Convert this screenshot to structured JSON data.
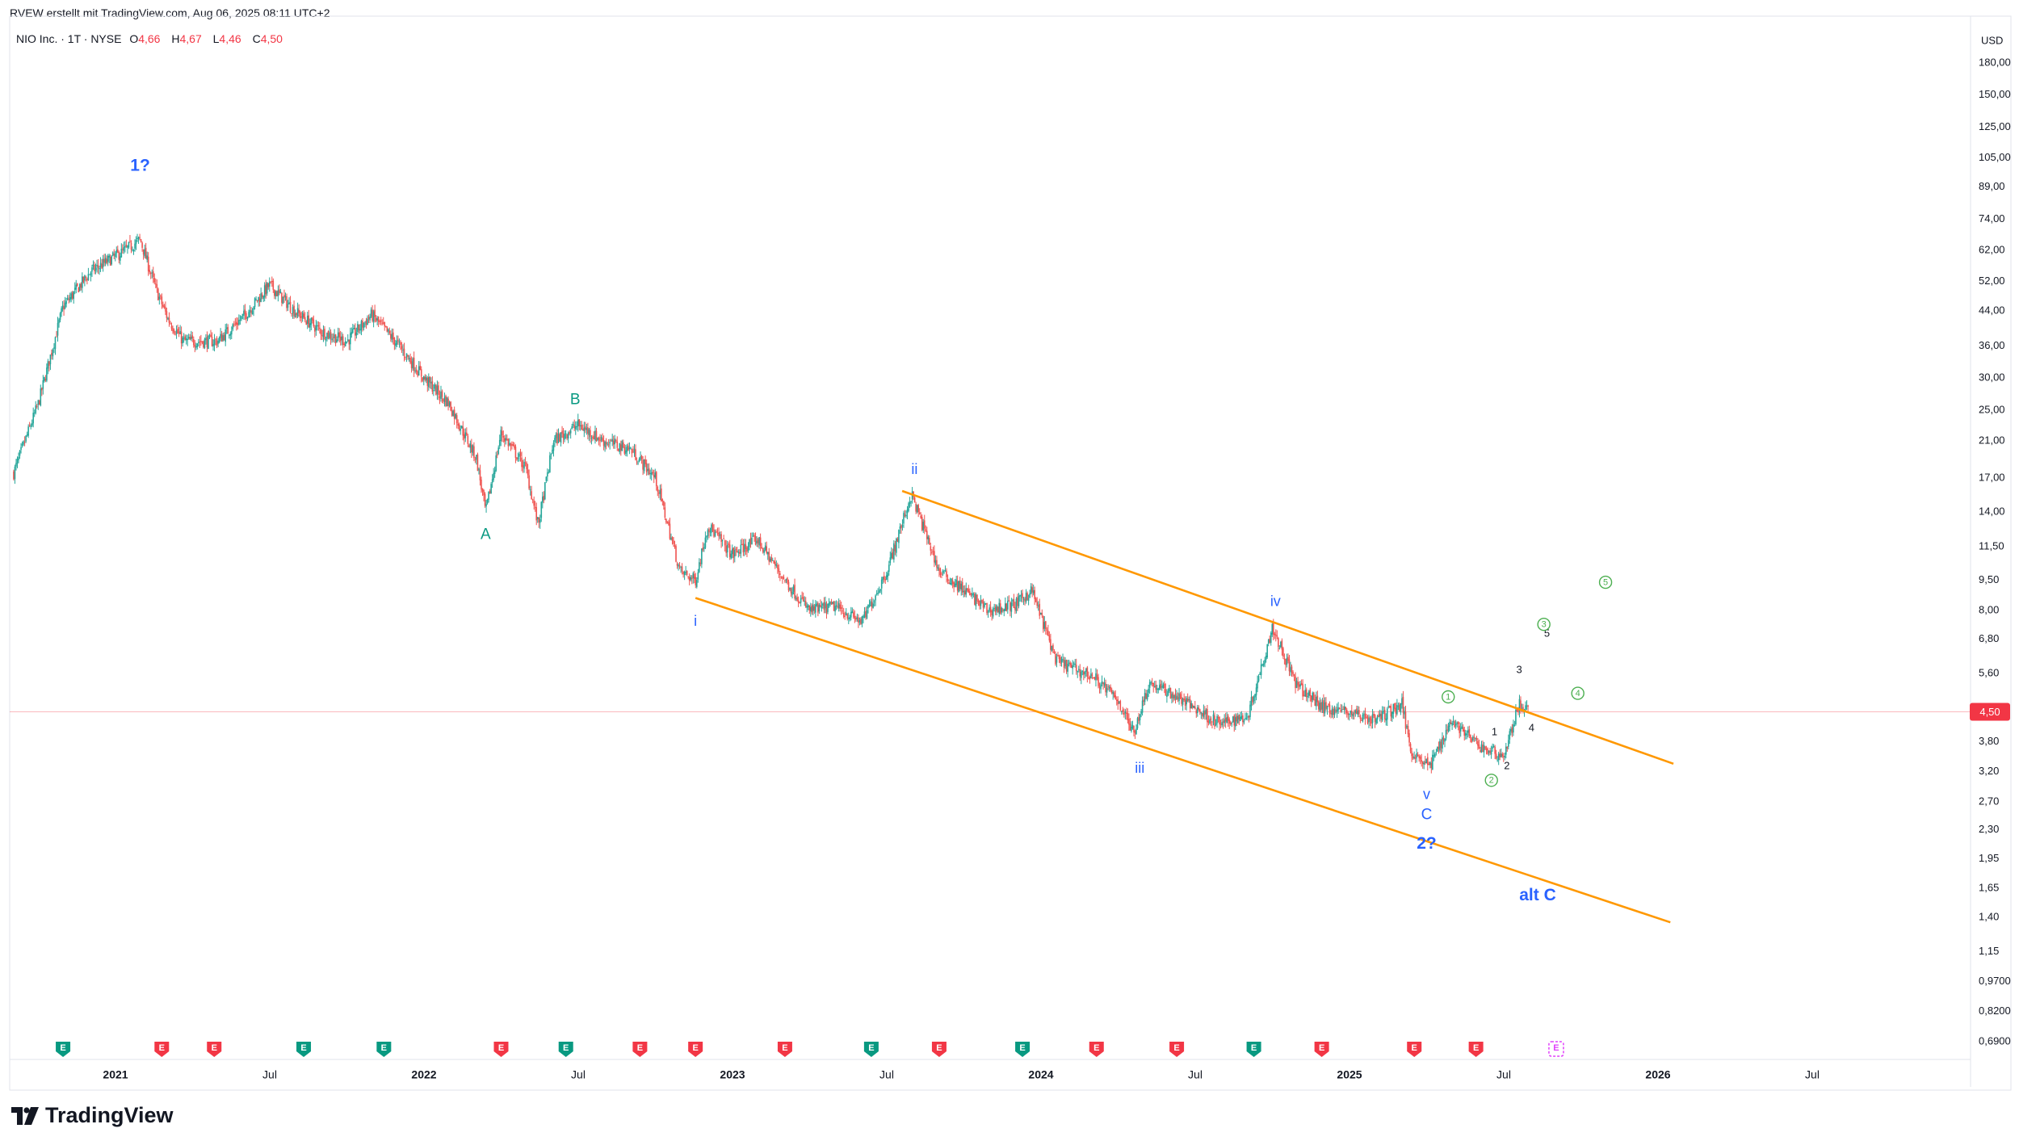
{
  "header": {
    "attribution": "RVEW erstellt mit TradingView.com, Aug 06, 2025 08:11 UTC+2"
  },
  "legend": {
    "symbol": "NIO Inc. · 1T · NYSE",
    "open_label": "O",
    "open": "4,66",
    "high_label": "H",
    "high": "4,67",
    "low_label": "L",
    "low": "4,46",
    "close_label": "C",
    "close": "4,50"
  },
  "brand": {
    "name": "TradingView"
  },
  "chart_data": {
    "type": "candlestick",
    "currency": "USD",
    "log_scale": true,
    "grid": false,
    "last_price": 4.5,
    "last_price_label": "4,50",
    "y_ticks": [
      {
        "v": 180,
        "label": "180,00"
      },
      {
        "v": 150,
        "label": "150,00"
      },
      {
        "v": 125,
        "label": "125,00"
      },
      {
        "v": 105,
        "label": "105,00"
      },
      {
        "v": 89,
        "label": "89,00"
      },
      {
        "v": 74,
        "label": "74,00"
      },
      {
        "v": 62,
        "label": "62,00"
      },
      {
        "v": 52,
        "label": "52,00"
      },
      {
        "v": 44,
        "label": "44,00"
      },
      {
        "v": 36,
        "label": "36,00"
      },
      {
        "v": 30,
        "label": "30,00"
      },
      {
        "v": 25,
        "label": "25,00"
      },
      {
        "v": 21,
        "label": "21,00"
      },
      {
        "v": 17,
        "label": "17,00"
      },
      {
        "v": 14,
        "label": "14,00"
      },
      {
        "v": 11.5,
        "label": "11,50"
      },
      {
        "v": 9.5,
        "label": "9,50"
      },
      {
        "v": 8,
        "label": "8,00"
      },
      {
        "v": 6.8,
        "label": "6,80"
      },
      {
        "v": 5.6,
        "label": "5,60"
      },
      {
        "v": 3.8,
        "label": "3,80"
      },
      {
        "v": 3.2,
        "label": "3,20"
      },
      {
        "v": 2.7,
        "label": "2,70"
      },
      {
        "v": 2.3,
        "label": "2,30"
      },
      {
        "v": 1.95,
        "label": "1,95"
      },
      {
        "v": 1.65,
        "label": "1,65"
      },
      {
        "v": 1.4,
        "label": "1,40"
      },
      {
        "v": 1.15,
        "label": "1,15"
      },
      {
        "v": 0.97,
        "label": "0,9700"
      },
      {
        "v": 0.82,
        "label": "0,8200"
      },
      {
        "v": 0.69,
        "label": "0,6900"
      }
    ],
    "x_ticks": [
      {
        "t": 2021.0,
        "label": "2021",
        "bold": true
      },
      {
        "t": 2021.5,
        "label": "Jul",
        "bold": false
      },
      {
        "t": 2022.0,
        "label": "2022",
        "bold": true
      },
      {
        "t": 2022.5,
        "label": "Jul",
        "bold": false
      },
      {
        "t": 2023.0,
        "label": "2023",
        "bold": true
      },
      {
        "t": 2023.5,
        "label": "Jul",
        "bold": false
      },
      {
        "t": 2024.0,
        "label": "2024",
        "bold": true
      },
      {
        "t": 2024.5,
        "label": "Jul",
        "bold": false
      },
      {
        "t": 2025.0,
        "label": "2025",
        "bold": true
      },
      {
        "t": 2025.5,
        "label": "Jul",
        "bold": false
      },
      {
        "t": 2026.0,
        "label": "2026",
        "bold": true
      },
      {
        "t": 2026.5,
        "label": "Jul",
        "bold": false
      }
    ],
    "price_path": [
      [
        2020.67,
        17.5
      ],
      [
        2020.75,
        26
      ],
      [
        2020.83,
        45
      ],
      [
        2020.92,
        55
      ],
      [
        2021.03,
        62
      ],
      [
        2021.08,
        66
      ],
      [
        2021.13,
        50
      ],
      [
        2021.17,
        42
      ],
      [
        2021.22,
        37
      ],
      [
        2021.33,
        37
      ],
      [
        2021.42,
        43
      ],
      [
        2021.5,
        51
      ],
      [
        2021.58,
        44
      ],
      [
        2021.67,
        39
      ],
      [
        2021.75,
        37
      ],
      [
        2021.83,
        43
      ],
      [
        2021.92,
        36
      ],
      [
        2022.0,
        30
      ],
      [
        2022.08,
        26
      ],
      [
        2022.17,
        19
      ],
      [
        2022.2,
        14
      ],
      [
        2022.25,
        22
      ],
      [
        2022.33,
        18
      ],
      [
        2022.37,
        13
      ],
      [
        2022.42,
        21
      ],
      [
        2022.5,
        23
      ],
      [
        2022.58,
        21
      ],
      [
        2022.67,
        20
      ],
      [
        2022.75,
        17
      ],
      [
        2022.83,
        10
      ],
      [
        2022.88,
        9.5
      ],
      [
        2022.92,
        13
      ],
      [
        2023.0,
        11
      ],
      [
        2023.08,
        12
      ],
      [
        2023.17,
        9.5
      ],
      [
        2023.25,
        8
      ],
      [
        2023.33,
        8.2
      ],
      [
        2023.42,
        7.5
      ],
      [
        2023.5,
        10
      ],
      [
        2023.58,
        15.5
      ],
      [
        2023.67,
        10
      ],
      [
        2023.75,
        9
      ],
      [
        2023.83,
        8
      ],
      [
        2023.92,
        8.3
      ],
      [
        2023.97,
        9
      ],
      [
        2024.05,
        6
      ],
      [
        2024.17,
        5.5
      ],
      [
        2024.25,
        4.8
      ],
      [
        2024.3,
        4.0
      ],
      [
        2024.35,
        5.3
      ],
      [
        2024.42,
        5.0
      ],
      [
        2024.5,
        4.6
      ],
      [
        2024.58,
        4.2
      ],
      [
        2024.67,
        4.4
      ],
      [
        2024.75,
        7.3
      ],
      [
        2024.83,
        5.2
      ],
      [
        2024.92,
        4.6
      ],
      [
        2025.0,
        4.5
      ],
      [
        2025.08,
        4.3
      ],
      [
        2025.17,
        4.7
      ],
      [
        2025.2,
        3.6
      ],
      [
        2025.26,
        3.3
      ],
      [
        2025.33,
        4.3
      ],
      [
        2025.42,
        3.7
      ],
      [
        2025.5,
        3.5
      ],
      [
        2025.55,
        4.7
      ],
      [
        2025.58,
        4.5
      ]
    ],
    "channel": {
      "upper": {
        "t1": 2023.55,
        "p1": 15.8,
        "t2": 2026.05,
        "p2": 3.35
      },
      "lower": {
        "t1": 2022.88,
        "p1": 8.6,
        "t2": 2026.04,
        "p2": 1.36
      }
    },
    "wave_labels": [
      {
        "text": "1?",
        "t": 2021.08,
        "p": 100,
        "color": "#2962ff",
        "size": 21
      },
      {
        "text": "A",
        "t": 2022.2,
        "p": 12.3,
        "color": "#089981",
        "size": 19
      },
      {
        "text": "B",
        "t": 2022.49,
        "p": 26.5,
        "color": "#089981",
        "size": 19
      },
      {
        "text": "i",
        "t": 2022.88,
        "p": 7.5,
        "color": "#2962ff",
        "size": 18
      },
      {
        "text": "ii",
        "t": 2023.59,
        "p": 17.8,
        "color": "#2962ff",
        "size": 18
      },
      {
        "text": "iii",
        "t": 2024.32,
        "p": 3.25,
        "color": "#2962ff",
        "size": 18
      },
      {
        "text": "iv",
        "t": 2024.76,
        "p": 8.4,
        "color": "#2962ff",
        "size": 18
      },
      {
        "text": "v",
        "t": 2025.25,
        "p": 2.8,
        "color": "#2962ff",
        "size": 18
      },
      {
        "text": "C",
        "t": 2025.25,
        "p": 2.5,
        "color": "#2962ff",
        "size": 19
      },
      {
        "text": "2?",
        "t": 2025.25,
        "p": 2.12,
        "color": "#2962ff",
        "size": 21
      },
      {
        "text": "alt C",
        "t": 2025.61,
        "p": 1.58,
        "color": "#2962ff",
        "size": 21
      },
      {
        "text": "1",
        "t": 2025.47,
        "p": 4.0,
        "color": "#131722",
        "size": 13
      },
      {
        "text": "2",
        "t": 2025.51,
        "p": 3.3,
        "color": "#131722",
        "size": 13
      },
      {
        "text": "3",
        "t": 2025.55,
        "p": 5.7,
        "color": "#131722",
        "size": 13
      },
      {
        "text": "4",
        "t": 2025.59,
        "p": 4.1,
        "color": "#131722",
        "size": 13
      },
      {
        "text": "5",
        "t": 2025.64,
        "p": 7.0,
        "color": "#131722",
        "size": 13
      }
    ],
    "circled_labels": [
      {
        "text": "1",
        "t": 2025.32,
        "p": 4.9
      },
      {
        "text": "2",
        "t": 2025.46,
        "p": 3.05
      },
      {
        "text": "3",
        "t": 2025.63,
        "p": 7.4
      },
      {
        "text": "4",
        "t": 2025.74,
        "p": 5.0
      },
      {
        "text": "5",
        "t": 2025.83,
        "p": 9.4
      }
    ],
    "events": [
      {
        "t": 2020.83,
        "label": "E",
        "color": "#089981"
      },
      {
        "t": 2021.15,
        "label": "E",
        "color": "#f23645"
      },
      {
        "t": 2021.32,
        "label": "E",
        "color": "#f23645"
      },
      {
        "t": 2021.61,
        "label": "E",
        "color": "#089981"
      },
      {
        "t": 2021.87,
        "label": "E",
        "color": "#089981"
      },
      {
        "t": 2022.25,
        "label": "E",
        "color": "#f23645"
      },
      {
        "t": 2022.46,
        "label": "E",
        "color": "#089981"
      },
      {
        "t": 2022.7,
        "label": "E",
        "color": "#f23645"
      },
      {
        "t": 2022.88,
        "label": "E",
        "color": "#f23645"
      },
      {
        "t": 2023.17,
        "label": "E",
        "color": "#f23645"
      },
      {
        "t": 2023.45,
        "label": "E",
        "color": "#089981"
      },
      {
        "t": 2023.67,
        "label": "E",
        "color": "#f23645"
      },
      {
        "t": 2023.94,
        "label": "E",
        "color": "#089981"
      },
      {
        "t": 2024.18,
        "label": "E",
        "color": "#f23645"
      },
      {
        "t": 2024.44,
        "label": "E",
        "color": "#f23645"
      },
      {
        "t": 2024.69,
        "label": "E",
        "color": "#089981"
      },
      {
        "t": 2024.91,
        "label": "E",
        "color": "#f23645"
      },
      {
        "t": 2025.21,
        "label": "E",
        "color": "#f23645"
      },
      {
        "t": 2025.41,
        "label": "E",
        "color": "#f23645"
      },
      {
        "t": 2025.67,
        "label": "E",
        "color": "#e040fb",
        "outline": true
      }
    ]
  },
  "colors": {
    "up": "#26a69a",
    "down": "#ef5350",
    "channel": "#ff9800",
    "last_price": "#f23645",
    "circled": "#4caf50"
  }
}
